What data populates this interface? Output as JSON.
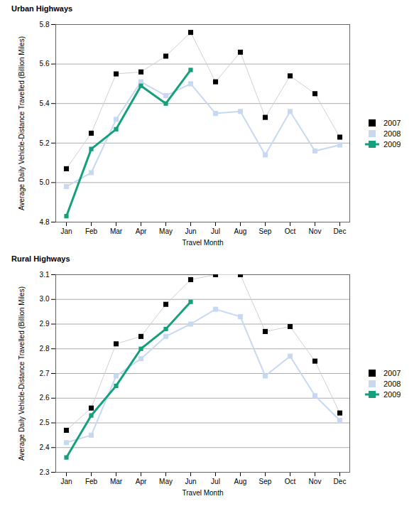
{
  "chart_data": [
    {
      "type": "line",
      "title": "Urban Highways",
      "x_label": "Travel Month",
      "y_label": "Average Daily Vehicle-Distance Travelled (Billion Miles)",
      "categories": [
        "Jan",
        "Feb",
        "Mar",
        "Apr",
        "May",
        "Jun",
        "Jul",
        "Aug",
        "Sep",
        "Oct",
        "Nov",
        "Dec"
      ],
      "series": [
        {
          "name": "2007",
          "color": "#000000",
          "marker": "square",
          "values": [
            5.07,
            5.25,
            5.55,
            5.56,
            5.64,
            5.76,
            5.51,
            5.66,
            5.33,
            5.54,
            5.45,
            5.23
          ]
        },
        {
          "name": "2008",
          "color": "#c6d9f1",
          "marker": "square",
          "values": [
            4.98,
            5.05,
            5.32,
            5.51,
            5.44,
            5.5,
            5.35,
            5.36,
            5.14,
            5.36,
            5.16,
            5.19
          ]
        },
        {
          "name": "2009",
          "color": "#15a07c",
          "marker": "square",
          "values": [
            4.83,
            5.17,
            5.27,
            5.49,
            5.4,
            5.57,
            null,
            null,
            null,
            null,
            null,
            null
          ]
        }
      ],
      "ylim": [
        4.8,
        5.8
      ],
      "yticks": [
        4.8,
        {
          "value": 5,
          "label": "5.0"
        },
        5.2,
        5.4,
        5.6,
        5.8
      ],
      "grid": true,
      "legend": "right"
    },
    {
      "type": "line",
      "title": "Rural Highways",
      "x_label": "Travel Month",
      "y_label": "Average Daily Vehicle-Distance Travelled (Billion Miles)",
      "categories": [
        "Jan",
        "Feb",
        "Mar",
        "Apr",
        "May",
        "Jun",
        "Jul",
        "Aug",
        "Sep",
        "Oct",
        "Nov",
        "Dec"
      ],
      "series": [
        {
          "name": "2007",
          "color": "#000000",
          "marker": "square",
          "values": [
            2.47,
            2.56,
            2.82,
            2.85,
            2.98,
            3.08,
            3.1,
            3.1,
            2.87,
            2.89,
            2.75,
            2.54
          ]
        },
        {
          "name": "2008",
          "color": "#c6d9f1",
          "marker": "square",
          "values": [
            2.42,
            2.45,
            2.69,
            2.76,
            2.85,
            2.9,
            2.96,
            2.93,
            2.69,
            2.77,
            2.61,
            2.51
          ]
        },
        {
          "name": "2009",
          "color": "#15a07c",
          "marker": "square",
          "values": [
            2.36,
            2.53,
            2.65,
            2.8,
            2.88,
            2.99,
            null,
            null,
            null,
            null,
            null,
            null
          ]
        }
      ],
      "ylim": [
        2.3,
        3.1
      ],
      "yticks": [
        2.3,
        2.4,
        2.5,
        2.6,
        2.7,
        2.8,
        2.9,
        {
          "value": 3,
          "label": "3.0"
        },
        3.1
      ],
      "grid": true,
      "legend": "right"
    }
  ]
}
